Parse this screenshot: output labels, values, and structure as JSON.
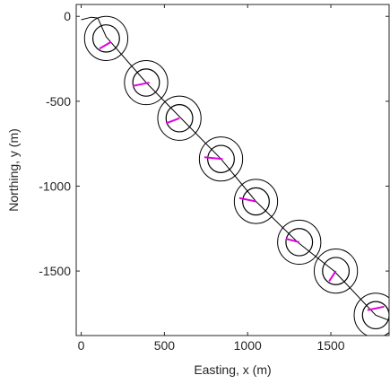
{
  "chart_data": {
    "type": "line",
    "title": "",
    "xlabel": "Easting, x (m)",
    "ylabel": "Northing, y (m)",
    "xlim": [
      -30,
      1850
    ],
    "ylim": [
      -1880,
      70
    ],
    "xticks": [
      0,
      500,
      1000,
      1500
    ],
    "yticks": [
      0,
      -500,
      -1000,
      -1500
    ],
    "xtick_labels": [
      "0",
      "500",
      "1000",
      "1500"
    ],
    "ytick_labels": [
      "0",
      "-500",
      "-1000",
      "-1500"
    ],
    "grid": false,
    "box": true,
    "track": {
      "color": "#000000",
      "points": [
        [
          0,
          -20
        ],
        [
          60,
          -5
        ],
        [
          100,
          -10
        ],
        [
          150,
          -120
        ],
        [
          390,
          -390
        ],
        [
          580,
          -580
        ],
        [
          840,
          -840
        ],
        [
          1050,
          -1090
        ],
        [
          1300,
          -1330
        ],
        [
          1520,
          -1500
        ],
        [
          1770,
          -1760
        ],
        [
          1850,
          -1790
        ]
      ]
    },
    "circles": {
      "color": "#000000",
      "outer_radius_m": 130,
      "inner_radius_m": 80,
      "centers": [
        [
          150,
          -130
        ],
        [
          390,
          -390
        ],
        [
          590,
          -600
        ],
        [
          840,
          -840
        ],
        [
          1050,
          -1090
        ],
        [
          1310,
          -1330
        ],
        [
          1530,
          -1500
        ],
        [
          1770,
          -1760
        ]
      ]
    },
    "heading_markers": {
      "color": "#e000e0",
      "segments": [
        [
          [
            110,
            -190
          ],
          [
            180,
            -150
          ]
        ],
        [
          [
            310,
            -410
          ],
          [
            410,
            -390
          ]
        ],
        [
          [
            510,
            -630
          ],
          [
            590,
            -600
          ]
        ],
        [
          [
            740,
            -830
          ],
          [
            850,
            -840
          ]
        ],
        [
          [
            950,
            -1070
          ],
          [
            1050,
            -1090
          ]
        ],
        [
          [
            1230,
            -1310
          ],
          [
            1310,
            -1330
          ]
        ],
        [
          [
            1490,
            -1560
          ],
          [
            1530,
            -1500
          ]
        ],
        [
          [
            1720,
            -1730
          ],
          [
            1820,
            -1710
          ]
        ]
      ]
    }
  }
}
